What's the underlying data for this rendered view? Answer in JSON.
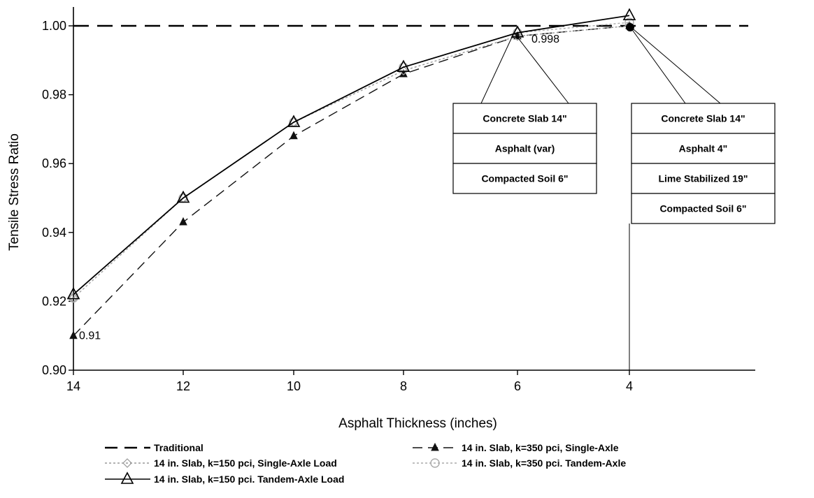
{
  "chart_data": {
    "type": "line",
    "xlabel": "Asphalt Thickness (inches)",
    "ylabel": "Tensile Stress Ratio",
    "x": [
      14,
      12,
      10,
      8,
      6,
      4
    ],
    "xlim": [
      14,
      4
    ],
    "ylim": [
      0.9,
      1.005
    ],
    "x_ticks": [
      "14",
      "12",
      "10",
      "8",
      "6",
      "4"
    ],
    "y_ticks": [
      "0.90",
      "0.92",
      "0.94",
      "0.96",
      "0.98",
      "1.00"
    ],
    "grid": false,
    "legend_position": "bottom",
    "series": [
      {
        "name": "Traditional",
        "style": "dashed",
        "marker": "none",
        "color": "#000000",
        "values": [
          1.0,
          1.0,
          1.0,
          1.0,
          1.0,
          1.0
        ]
      },
      {
        "name": "14 in. Slab, k=350 pci, Single-Axle",
        "style": "dashed",
        "marker": "filled-triangle",
        "color": "#111111",
        "values": [
          0.91,
          0.943,
          0.968,
          0.986,
          0.997,
          1.0
        ]
      },
      {
        "name": "14 in. Slab, k=150 pci, Single-Axle Load",
        "style": "dotted",
        "marker": "diamond",
        "color": "#999999",
        "values": [
          0.921,
          0.95,
          0.972,
          0.987,
          0.997,
          1.0
        ]
      },
      {
        "name": "14 in. Slab, k=350 pci. Tandem-Axle",
        "style": "dotted",
        "marker": "circle",
        "color": "#aaaaaa",
        "values": [
          0.921,
          0.95,
          0.972,
          0.988,
          0.998,
          1.001
        ]
      },
      {
        "name": "14 in. Slab, k=150 pci. Tandem-Axle Load",
        "style": "solid",
        "marker": "open-triangle",
        "color": "#000000",
        "values": [
          0.922,
          0.95,
          0.972,
          0.988,
          0.998,
          1.003
        ]
      }
    ],
    "annotations": [
      {
        "text": "0.998",
        "x": 6,
        "y": 0.998
      },
      {
        "text": "0.91",
        "x": 14,
        "y": 0.91
      }
    ],
    "callout_boxes": [
      {
        "x": 6,
        "y": 0.998,
        "layers": [
          "Concrete Slab 14\"",
          "Asphalt  (var)",
          "Compacted Soil 6\""
        ]
      },
      {
        "x": 4,
        "y": 1.0,
        "layers": [
          "Concrete Slab 14\"",
          "Asphalt 4\"",
          "Lime Stabilized 19\"",
          "Compacted Soil 6\""
        ]
      }
    ]
  }
}
